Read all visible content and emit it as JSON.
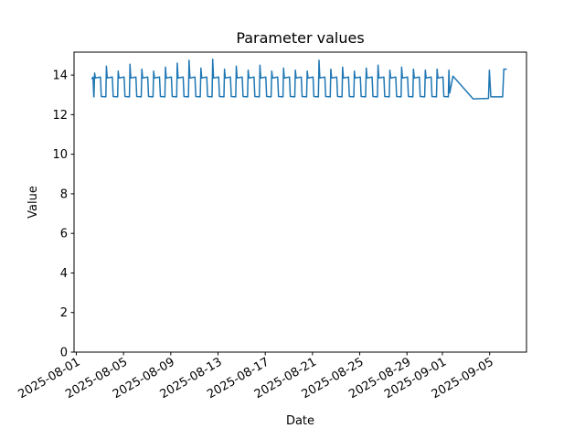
{
  "figure": {
    "background_color": "#ffffff",
    "text_color": "#000000"
  },
  "chart_data": {
    "type": "line",
    "title": "Parameter values",
    "xlabel": "Date",
    "ylabel": "Value",
    "legend": null,
    "grid": false,
    "line_color": "#1f77b4",
    "line_width": 1.5,
    "x_unit": "days since 2025-08-01",
    "x_axis": {
      "lim": [
        -0.19,
        38.12
      ],
      "ticks": [
        {
          "day": 0,
          "label": "2025-08-01"
        },
        {
          "day": 4,
          "label": "2025-08-05"
        },
        {
          "day": 8,
          "label": "2025-08-09"
        },
        {
          "day": 12,
          "label": "2025-08-13"
        },
        {
          "day": 16,
          "label": "2025-08-17"
        },
        {
          "day": 20,
          "label": "2025-08-21"
        },
        {
          "day": 24,
          "label": "2025-08-25"
        },
        {
          "day": 28,
          "label": "2025-08-29"
        },
        {
          "day": 31,
          "label": "2025-09-01"
        },
        {
          "day": 35,
          "label": "2025-09-05"
        }
      ],
      "tick_rotation_deg": 30
    },
    "y_axis": {
      "lim": [
        0,
        15.16
      ],
      "ticks": [
        0,
        2,
        4,
        6,
        8,
        10,
        12,
        14
      ]
    },
    "points": [
      [
        1.3,
        13.8
      ],
      [
        1.42,
        13.9
      ],
      [
        1.48,
        12.9
      ],
      [
        1.5,
        12.9
      ],
      [
        1.55,
        14.1
      ],
      [
        1.62,
        13.85
      ],
      [
        2.05,
        13.9
      ],
      [
        2.12,
        12.92
      ],
      [
        2.5,
        12.9
      ],
      [
        2.55,
        14.45
      ],
      [
        2.62,
        13.85
      ],
      [
        3.05,
        13.9
      ],
      [
        3.12,
        12.92
      ],
      [
        3.5,
        12.9
      ],
      [
        3.55,
        14.2
      ],
      [
        3.62,
        13.85
      ],
      [
        4.05,
        13.9
      ],
      [
        4.12,
        12.92
      ],
      [
        4.5,
        12.9
      ],
      [
        4.55,
        14.55
      ],
      [
        4.62,
        13.85
      ],
      [
        5.05,
        13.9
      ],
      [
        5.12,
        12.92
      ],
      [
        5.5,
        12.9
      ],
      [
        5.55,
        14.3
      ],
      [
        5.62,
        13.85
      ],
      [
        6.05,
        13.9
      ],
      [
        6.12,
        12.92
      ],
      [
        6.5,
        12.9
      ],
      [
        6.55,
        14.2
      ],
      [
        6.62,
        13.85
      ],
      [
        7.05,
        13.9
      ],
      [
        7.12,
        12.92
      ],
      [
        7.5,
        12.9
      ],
      [
        7.55,
        14.4
      ],
      [
        7.62,
        13.85
      ],
      [
        8.05,
        13.9
      ],
      [
        8.12,
        12.92
      ],
      [
        8.5,
        12.9
      ],
      [
        8.55,
        14.6
      ],
      [
        8.62,
        13.85
      ],
      [
        9.05,
        13.9
      ],
      [
        9.12,
        12.92
      ],
      [
        9.5,
        12.9
      ],
      [
        9.55,
        14.75
      ],
      [
        9.62,
        13.85
      ],
      [
        10.05,
        13.9
      ],
      [
        10.12,
        12.92
      ],
      [
        10.5,
        12.9
      ],
      [
        10.55,
        14.35
      ],
      [
        10.62,
        13.85
      ],
      [
        11.05,
        13.9
      ],
      [
        11.12,
        12.92
      ],
      [
        11.5,
        12.9
      ],
      [
        11.55,
        14.8
      ],
      [
        11.62,
        13.85
      ],
      [
        12.05,
        13.9
      ],
      [
        12.12,
        12.92
      ],
      [
        12.5,
        12.9
      ],
      [
        12.55,
        14.3
      ],
      [
        12.62,
        13.85
      ],
      [
        13.05,
        13.9
      ],
      [
        13.12,
        12.92
      ],
      [
        13.5,
        12.9
      ],
      [
        13.55,
        14.45
      ],
      [
        13.62,
        13.85
      ],
      [
        14.05,
        13.9
      ],
      [
        14.12,
        12.92
      ],
      [
        14.5,
        12.9
      ],
      [
        14.55,
        14.25
      ],
      [
        14.62,
        13.85
      ],
      [
        15.05,
        13.9
      ],
      [
        15.12,
        12.92
      ],
      [
        15.5,
        12.9
      ],
      [
        15.55,
        14.5
      ],
      [
        15.62,
        13.85
      ],
      [
        16.05,
        13.9
      ],
      [
        16.12,
        12.92
      ],
      [
        16.5,
        12.9
      ],
      [
        16.55,
        14.2
      ],
      [
        16.62,
        13.85
      ],
      [
        17.05,
        13.9
      ],
      [
        17.12,
        12.92
      ],
      [
        17.5,
        12.9
      ],
      [
        17.55,
        14.35
      ],
      [
        17.62,
        13.85
      ],
      [
        18.05,
        13.9
      ],
      [
        18.12,
        12.92
      ],
      [
        18.5,
        12.9
      ],
      [
        18.55,
        14.25
      ],
      [
        18.62,
        13.85
      ],
      [
        19.05,
        13.9
      ],
      [
        19.12,
        12.92
      ],
      [
        19.5,
        12.9
      ],
      [
        19.55,
        14.2
      ],
      [
        19.62,
        13.85
      ],
      [
        20.05,
        13.9
      ],
      [
        20.12,
        12.92
      ],
      [
        20.5,
        12.9
      ],
      [
        20.55,
        14.75
      ],
      [
        20.62,
        13.85
      ],
      [
        21.05,
        13.9
      ],
      [
        21.12,
        12.92
      ],
      [
        21.5,
        12.9
      ],
      [
        21.55,
        14.3
      ],
      [
        21.62,
        13.85
      ],
      [
        22.05,
        13.9
      ],
      [
        22.12,
        12.92
      ],
      [
        22.5,
        12.9
      ],
      [
        22.55,
        14.4
      ],
      [
        22.62,
        13.85
      ],
      [
        23.05,
        13.9
      ],
      [
        23.12,
        12.92
      ],
      [
        23.5,
        12.9
      ],
      [
        23.55,
        14.2
      ],
      [
        23.62,
        13.85
      ],
      [
        24.05,
        13.9
      ],
      [
        24.12,
        12.92
      ],
      [
        24.5,
        12.9
      ],
      [
        24.55,
        14.35
      ],
      [
        24.62,
        13.85
      ],
      [
        25.05,
        13.9
      ],
      [
        25.12,
        12.92
      ],
      [
        25.5,
        12.9
      ],
      [
        25.55,
        14.5
      ],
      [
        25.62,
        13.85
      ],
      [
        26.05,
        13.9
      ],
      [
        26.12,
        12.92
      ],
      [
        26.5,
        12.9
      ],
      [
        26.55,
        14.25
      ],
      [
        26.62,
        13.85
      ],
      [
        27.05,
        13.9
      ],
      [
        27.12,
        12.92
      ],
      [
        27.5,
        12.9
      ],
      [
        27.55,
        14.4
      ],
      [
        27.62,
        13.85
      ],
      [
        28.05,
        13.9
      ],
      [
        28.12,
        12.92
      ],
      [
        28.5,
        12.9
      ],
      [
        28.55,
        14.3
      ],
      [
        28.62,
        13.85
      ],
      [
        29.05,
        13.9
      ],
      [
        29.12,
        12.92
      ],
      [
        29.5,
        12.9
      ],
      [
        29.55,
        14.25
      ],
      [
        29.62,
        13.85
      ],
      [
        30.05,
        13.9
      ],
      [
        30.12,
        12.92
      ],
      [
        30.5,
        12.9
      ],
      [
        30.55,
        14.3
      ],
      [
        30.62,
        13.85
      ],
      [
        31.05,
        13.9
      ],
      [
        31.12,
        12.92
      ],
      [
        31.5,
        12.9
      ],
      [
        31.55,
        14.25
      ],
      [
        31.62,
        13.1
      ],
      [
        31.9,
        13.95
      ],
      [
        33.6,
        12.8
      ],
      [
        34.9,
        12.82
      ],
      [
        34.98,
        14.25
      ],
      [
        35.1,
        12.9
      ],
      [
        36.1,
        12.9
      ],
      [
        36.2,
        14.3
      ],
      [
        36.45,
        14.3
      ]
    ]
  }
}
